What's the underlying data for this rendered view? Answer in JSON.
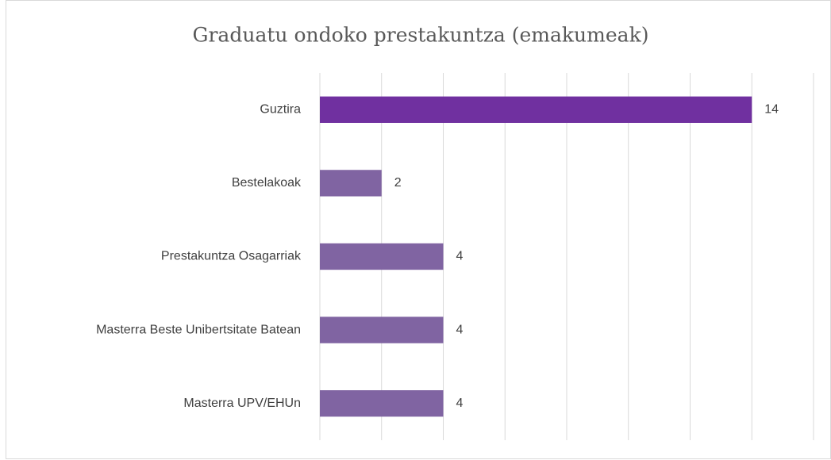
{
  "chart_data": {
    "type": "bar",
    "orientation": "horizontal",
    "title": "Graduatu ondoko prestakuntza (emakumeak)",
    "categories": [
      "Guztira",
      "Bestelakoak",
      "Prestakuntza Osagarriak",
      "Masterra Beste Unibertsitate Batean",
      "Masterra UPV/EHUn"
    ],
    "values": [
      14,
      2,
      4,
      4,
      4
    ],
    "colors": [
      "#7030a0",
      "#8064a2",
      "#8064a2",
      "#8064a2",
      "#8064a2"
    ],
    "xlim": [
      0,
      16
    ],
    "xticks": [
      0,
      2,
      4,
      6,
      8,
      10,
      12,
      14,
      16
    ],
    "grid": true
  }
}
